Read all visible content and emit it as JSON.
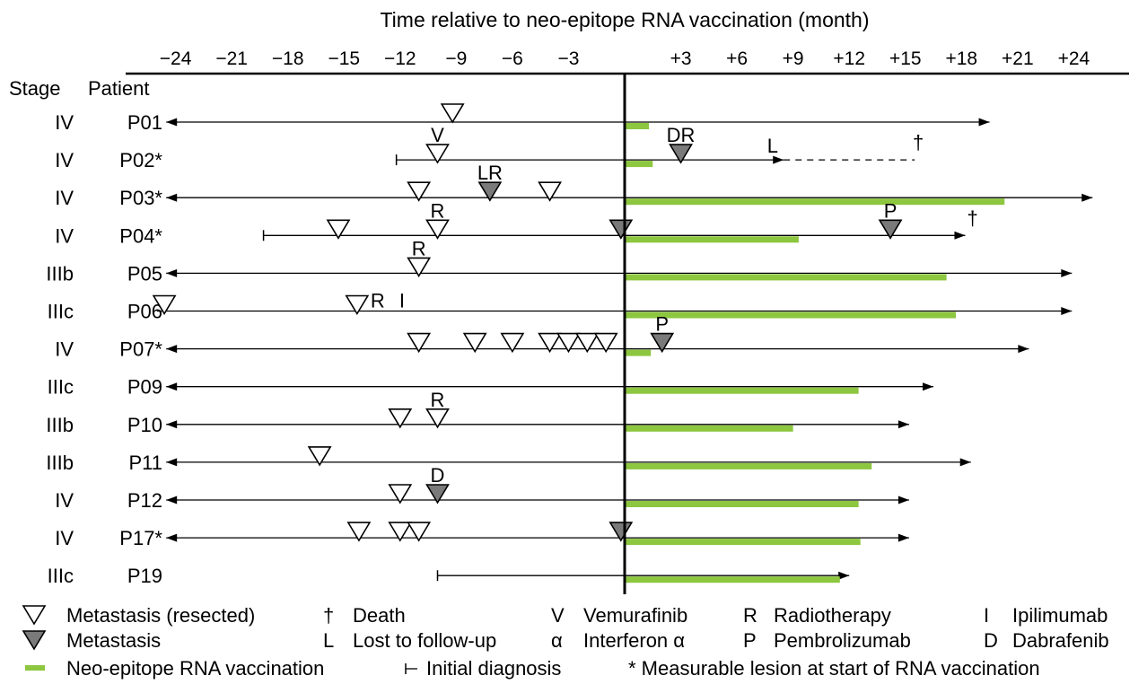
{
  "chart_data": {
    "type": "timeline",
    "title": "Time relative to neo-epitope RNA vaccination (month)",
    "x_ticks": [
      -24,
      -21,
      -18,
      -15,
      -12,
      -9,
      -6,
      -3,
      3,
      6,
      9,
      12,
      15,
      18,
      21,
      24
    ],
    "x_tick_labels": [
      "−24",
      "−21",
      "−18",
      "−15",
      "−12",
      "−9",
      "−6",
      "−3",
      "+3",
      "+6",
      "+9",
      "+12",
      "+15",
      "+18",
      "+21",
      "+24"
    ],
    "xlim": [
      -25.5,
      26.5
    ],
    "headers": {
      "stage": "Stage",
      "patient": "Patient"
    },
    "colors": {
      "vaccination": "#8dc63f",
      "metastasis_filled": "#7a7a7a",
      "line": "#000000"
    },
    "patients": [
      {
        "stage": "IV",
        "id": "P01",
        "start": -24.5,
        "start_type": "arrow",
        "end": 19.5,
        "end_type": "arrow",
        "vacc_end": 1.3,
        "markers": [
          {
            "month": -9.2,
            "type": "open",
            "level": "high"
          }
        ],
        "labels": []
      },
      {
        "stage": "IV",
        "id": "P02*",
        "start": -12.2,
        "start_type": "bar",
        "end": 8.5,
        "end_type": "arrow",
        "vacc_end": 1.5,
        "dashed_end": 15.5,
        "markers": [
          {
            "month": -10,
            "type": "open"
          },
          {
            "month": 3,
            "type": "filled"
          }
        ],
        "labels": [
          {
            "month": -10,
            "text": "V",
            "pos": "above"
          },
          {
            "month": 3,
            "text": "DR",
            "pos": "above"
          },
          {
            "month": 8.3,
            "text": "L",
            "pos": "topleft"
          },
          {
            "month": 15.3,
            "text": "†",
            "pos": "topright"
          }
        ]
      },
      {
        "stage": "IV",
        "id": "P03*",
        "start": -24.5,
        "start_type": "arrow",
        "end": 25,
        "end_type": "arrow",
        "vacc_end": 20.3,
        "markers": [
          {
            "month": -11,
            "type": "open"
          },
          {
            "month": -7.2,
            "type": "filled"
          },
          {
            "month": -4,
            "type": "open"
          }
        ],
        "labels": [
          {
            "month": -7.2,
            "text": "LR",
            "pos": "above"
          }
        ]
      },
      {
        "stage": "IV",
        "id": "P04*",
        "start": -19.3,
        "start_type": "bar",
        "end": 18.2,
        "end_type": "arrow",
        "vacc_end": 9.3,
        "markers": [
          {
            "month": -15.3,
            "type": "open"
          },
          {
            "month": -10,
            "type": "open"
          },
          {
            "month": -0.2,
            "type": "filled"
          },
          {
            "month": 14.2,
            "type": "filled"
          }
        ],
        "labels": [
          {
            "month": -10,
            "text": "R",
            "pos": "above"
          },
          {
            "month": 14.2,
            "text": "P",
            "pos": "above"
          },
          {
            "month": 18.2,
            "text": "†",
            "pos": "topright"
          }
        ]
      },
      {
        "stage": "IIIb",
        "id": "P05",
        "start": -24.5,
        "start_type": "arrow",
        "end": 23.9,
        "end_type": "arrow",
        "vacc_end": 17.2,
        "markers": [
          {
            "month": -11,
            "type": "open"
          }
        ],
        "labels": [
          {
            "month": -11,
            "text": "R",
            "pos": "above"
          }
        ]
      },
      {
        "stage": "IIIc",
        "id": "P06",
        "start": -25,
        "start_type": "none",
        "end": 23.9,
        "end_type": "arrow",
        "vacc_end": 17.7,
        "markers": [
          {
            "month": -24.6,
            "type": "open"
          },
          {
            "month": -14.3,
            "type": "open"
          }
        ],
        "labels": [
          {
            "month": -13.2,
            "text": "R",
            "pos": "inline"
          },
          {
            "month": -11.9,
            "text": "I",
            "pos": "inline"
          }
        ]
      },
      {
        "stage": "IV",
        "id": "P07*",
        "start": -24.5,
        "start_type": "arrow",
        "end": 21.6,
        "end_type": "arrow",
        "vacc_end": 1.4,
        "markers": [
          {
            "month": -11,
            "type": "open"
          },
          {
            "month": -8,
            "type": "open"
          },
          {
            "month": -6,
            "type": "open"
          },
          {
            "month": -4,
            "type": "open"
          },
          {
            "month": -3,
            "type": "open"
          },
          {
            "month": -2,
            "type": "open"
          },
          {
            "month": -1,
            "type": "open"
          },
          {
            "month": 2,
            "type": "filled"
          }
        ],
        "labels": [
          {
            "month": 2,
            "text": "P",
            "pos": "above"
          }
        ]
      },
      {
        "stage": "IIIc",
        "id": "P09",
        "start": -24.5,
        "start_type": "arrow",
        "end": 16.5,
        "end_type": "arrow",
        "vacc_end": 12.5,
        "markers": [],
        "labels": []
      },
      {
        "stage": "IIIb",
        "id": "P10",
        "start": -24.5,
        "start_type": "arrow",
        "end": 15.2,
        "end_type": "arrow",
        "vacc_end": 9,
        "markers": [
          {
            "month": -12,
            "type": "open"
          },
          {
            "month": -10,
            "type": "open"
          }
        ],
        "labels": [
          {
            "month": -10,
            "text": "R",
            "pos": "above"
          }
        ]
      },
      {
        "stage": "IIIb",
        "id": "P11",
        "start": -24.5,
        "start_type": "arrow",
        "end": 18.5,
        "end_type": "arrow",
        "vacc_end": 13.2,
        "markers": [
          {
            "month": -16.3,
            "type": "open"
          }
        ],
        "labels": []
      },
      {
        "stage": "IV",
        "id": "P12",
        "start": -24.5,
        "start_type": "arrow",
        "end": 15.2,
        "end_type": "arrow",
        "vacc_end": 12.5,
        "markers": [
          {
            "month": -12,
            "type": "open"
          },
          {
            "month": -10,
            "type": "filled"
          }
        ],
        "labels": [
          {
            "month": -10,
            "text": "D",
            "pos": "above"
          }
        ]
      },
      {
        "stage": "IV",
        "id": "P17*",
        "start": -24.5,
        "start_type": "arrow",
        "end": 15.2,
        "end_type": "arrow",
        "vacc_end": 12.6,
        "markers": [
          {
            "month": -14.2,
            "type": "open"
          },
          {
            "month": -12,
            "type": "open"
          },
          {
            "month": -11,
            "type": "open"
          },
          {
            "month": -0.2,
            "type": "filled"
          }
        ],
        "labels": []
      },
      {
        "stage": "IIIc",
        "id": "P19",
        "start": -10,
        "start_type": "bar",
        "end": 12,
        "end_type": "arrow",
        "vacc_end": 11.5,
        "markers": [],
        "labels": []
      }
    ],
    "legend": [
      {
        "symbol": "open-triangle",
        "text": "Metastasis (resected)"
      },
      {
        "symbol": "†",
        "text": "Death"
      },
      {
        "symbol": "V",
        "text": "Vemurafinib"
      },
      {
        "symbol": "R",
        "text": "Radiotherapy"
      },
      {
        "symbol": "I",
        "text": "Ipilimumab"
      },
      {
        "symbol": "filled-triangle",
        "text": "Metastasis"
      },
      {
        "symbol": "L",
        "text": "Lost to follow-up"
      },
      {
        "symbol": "α",
        "text": "Interferon α"
      },
      {
        "symbol": "P",
        "text": "Pembrolizumab"
      },
      {
        "symbol": "D",
        "text": "Dabrafenib"
      },
      {
        "symbol": "green-bar",
        "text": "Neo-epitope RNA vaccination"
      },
      {
        "symbol": "initial-diagnosis",
        "text": "Initial diagnosis"
      },
      {
        "symbol": "",
        "text": "* Measurable lesion at start of RNA vaccination"
      }
    ]
  }
}
